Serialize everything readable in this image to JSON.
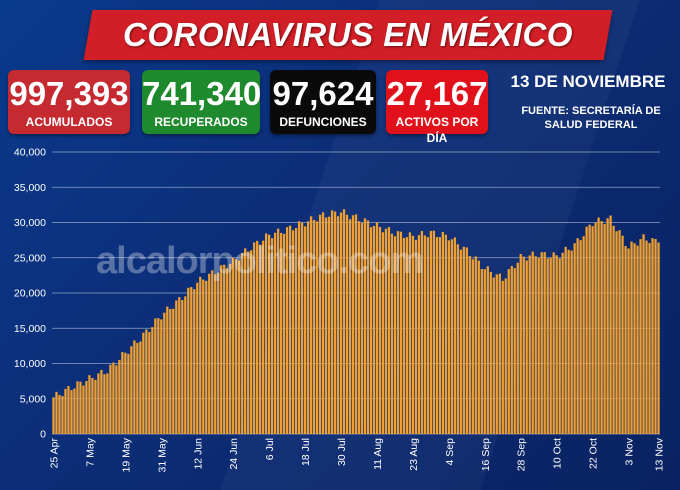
{
  "header": {
    "title": "CORONAVIRUS EN MÉXICO"
  },
  "stats": [
    {
      "value": "997,393",
      "label": "ACUMULADOS"
    },
    {
      "value": "741,340",
      "label": "RECUPERADOS"
    },
    {
      "value": "97,624",
      "label": "DEFUNCIONES"
    },
    {
      "value": "27,167",
      "label": "ACTIVOS POR DÍA"
    }
  ],
  "date": "13 DE NOVIEMBRE",
  "source": "FUENTE: SECRETARÍA DE SALUD FEDERAL",
  "watermark": "alcalorpolitico.com",
  "colors": {
    "bar": "#f0a030",
    "title_banner": "#d21e26",
    "background": "#0b2a6e"
  },
  "chart_data": {
    "type": "bar",
    "title": "",
    "xlabel": "",
    "ylabel": "",
    "ylim": [
      0,
      40000
    ],
    "grid": true,
    "yticks": [
      "0",
      "5,000",
      "10,000",
      "15,000",
      "20,000",
      "25,000",
      "30,000",
      "35,000",
      "40,000"
    ],
    "xticks": [
      "25 Apr",
      "7 May",
      "19 May",
      "31 May",
      "12 Jun",
      "24 Jun",
      "6 Jul",
      "18 Jul",
      "30 Jul",
      "11 Aug",
      "23 Aug",
      "4 Sep",
      "16 Sep",
      "28 Sep",
      "10 Oct",
      "22 Oct",
      "3 Nov",
      "13 Nov"
    ],
    "keypoints": [
      [
        "2020-04-25",
        5200
      ],
      [
        "2020-05-01",
        6600
      ],
      [
        "2020-05-07",
        7800
      ],
      [
        "2020-05-13",
        9000
      ],
      [
        "2020-05-19",
        11500
      ],
      [
        "2020-05-25",
        14000
      ],
      [
        "2020-05-31",
        16800
      ],
      [
        "2020-06-06",
        19000
      ],
      [
        "2020-06-12",
        21500
      ],
      [
        "2020-06-18",
        23000
      ],
      [
        "2020-06-24",
        24500
      ],
      [
        "2020-06-30",
        26500
      ],
      [
        "2020-07-06",
        28200
      ],
      [
        "2020-07-12",
        29000
      ],
      [
        "2020-07-18",
        30000
      ],
      [
        "2020-07-24",
        31000
      ],
      [
        "2020-07-30",
        31500
      ],
      [
        "2020-08-05",
        30500
      ],
      [
        "2020-08-11",
        29500
      ],
      [
        "2020-08-17",
        28500
      ],
      [
        "2020-08-23",
        28000
      ],
      [
        "2020-08-29",
        28500
      ],
      [
        "2020-09-04",
        28000
      ],
      [
        "2020-09-10",
        26000
      ],
      [
        "2020-09-16",
        23500
      ],
      [
        "2020-09-22",
        22000
      ],
      [
        "2020-09-28",
        25000
      ],
      [
        "2020-10-04",
        25500
      ],
      [
        "2020-10-10",
        25200
      ],
      [
        "2020-10-16",
        26800
      ],
      [
        "2020-10-22",
        30000
      ],
      [
        "2020-10-28",
        30500
      ],
      [
        "2020-11-03",
        26500
      ],
      [
        "2020-11-08",
        27800
      ],
      [
        "2020-11-13",
        27167
      ]
    ]
  }
}
